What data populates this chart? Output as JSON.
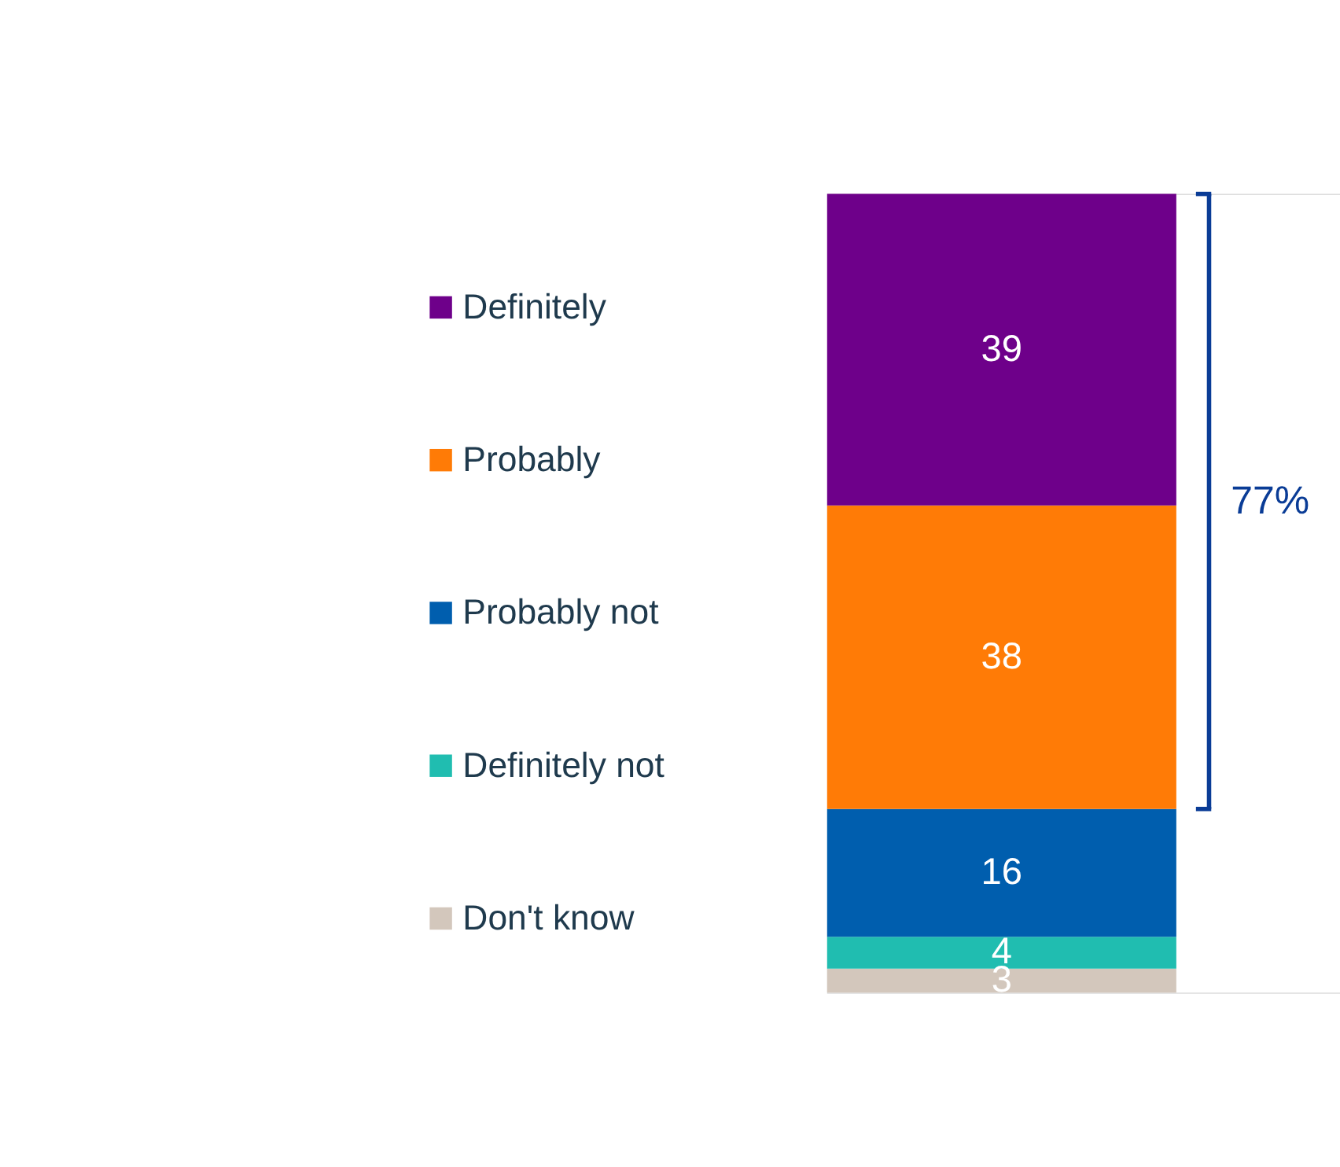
{
  "chart_data": {
    "type": "bar",
    "stacked": true,
    "categories": [
      null
    ],
    "data_labels": true,
    "legend": "left",
    "annotations": [
      "77%"
    ],
    "series": [
      {
        "name": "Don't know",
        "color": "#d3c7bc",
        "values": [
          3
        ]
      },
      {
        "name": "Definitely not",
        "color": "#20bdb0",
        "values": [
          4
        ]
      },
      {
        "name": "Probably not",
        "color": "#005eae",
        "values": [
          16
        ]
      },
      {
        "name": "Probably",
        "color": "#ff7b06",
        "values": [
          38
        ]
      },
      {
        "name": "Definitely",
        "color": "#6e008a",
        "values": [
          39
        ]
      }
    ]
  }
}
